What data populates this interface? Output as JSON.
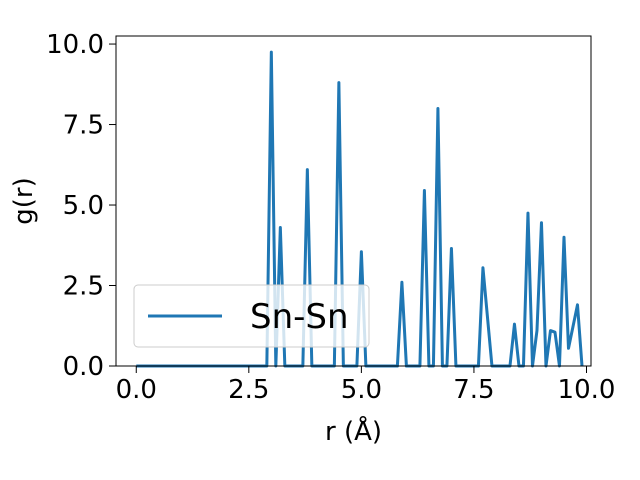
{
  "chart_data": {
    "type": "line",
    "title": "",
    "xlabel": "r (Å)",
    "ylabel": "g(r)",
    "xlim": [
      -0.45,
      10.1
    ],
    "ylim": [
      0.0,
      10.25
    ],
    "xticks": [
      0.0,
      2.5,
      5.0,
      7.5,
      10.0
    ],
    "xtick_labels": [
      "0.0",
      "2.5",
      "5.0",
      "7.5",
      "10.0"
    ],
    "yticks": [
      0.0,
      2.5,
      5.0,
      7.5,
      10.0
    ],
    "ytick_labels": [
      "0.0",
      "2.5",
      "5.0",
      "7.5",
      "10.0"
    ],
    "grid": false,
    "legend_position": "lower-left",
    "line_color": "#1f77b4",
    "series": [
      {
        "name": "Sn-Sn",
        "color": "#1f77b4",
        "x": [
          0.0,
          2.9,
          3.0,
          3.1,
          3.2,
          3.3,
          3.7,
          3.8,
          3.9,
          4.4,
          4.5,
          4.6,
          4.9,
          5.0,
          5.1,
          5.8,
          5.9,
          6.0,
          6.3,
          6.4,
          6.5,
          6.6,
          6.7,
          6.8,
          6.9,
          7.0,
          7.1,
          7.6,
          7.7,
          7.9,
          8.3,
          8.4,
          8.5,
          8.6,
          8.7,
          8.8,
          8.9,
          9.0,
          9.1,
          9.2,
          9.3,
          9.4,
          9.5,
          9.6,
          9.8,
          9.9
        ],
        "values": [
          0.0,
          0.0,
          9.75,
          0.0,
          4.3,
          0.0,
          0.0,
          6.1,
          0.0,
          0.0,
          8.8,
          0.0,
          0.0,
          3.55,
          0.0,
          0.0,
          2.6,
          0.0,
          0.0,
          5.45,
          0.0,
          0.0,
          8.0,
          0.0,
          0.0,
          3.65,
          0.0,
          0.0,
          3.05,
          0.0,
          0.0,
          1.3,
          0.0,
          0.0,
          4.75,
          0.0,
          1.1,
          4.45,
          0.0,
          1.1,
          1.05,
          0.0,
          4.0,
          0.55,
          1.9,
          0.0
        ]
      }
    ]
  }
}
